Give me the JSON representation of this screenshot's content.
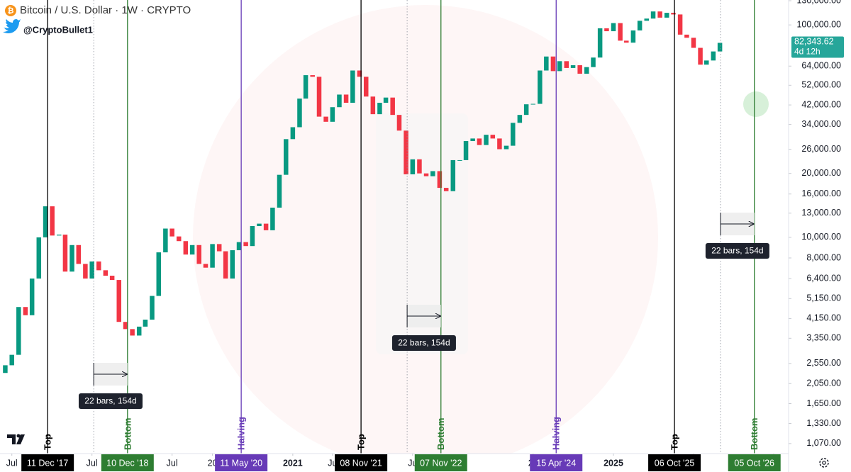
{
  "chart_data": {
    "type": "candlestick",
    "title": "Bitcoin / U.S. Dollar · 1W · CRYPTO",
    "author": "@CryptoBullet1",
    "log_scale": true,
    "grid": false,
    "up_color": "#089981",
    "down_color": "#f23645",
    "x": [
      "2017-05",
      "2017-06",
      "2017-07",
      "2017-08",
      "2017-09",
      "2017-10",
      "2017-11",
      "2017-12",
      "2018-01",
      "2018-02",
      "2018-03",
      "2018-04",
      "2018-05",
      "2018-06",
      "2018-07",
      "2018-08",
      "2018-09",
      "2018-10",
      "2018-11",
      "2018-12",
      "2019-01",
      "2019-02",
      "2019-03",
      "2019-04",
      "2019-05",
      "2019-06",
      "2019-07",
      "2019-08",
      "2019-09",
      "2019-10",
      "2019-11",
      "2019-12",
      "2020-01",
      "2020-02",
      "2020-03",
      "2020-04",
      "2020-05",
      "2020-06",
      "2020-07",
      "2020-08",
      "2020-09",
      "2020-10",
      "2020-11",
      "2020-12",
      "2021-01",
      "2021-02",
      "2021-03",
      "2021-04",
      "2021-05",
      "2021-06",
      "2021-07",
      "2021-08",
      "2021-09",
      "2021-10",
      "2021-11",
      "2021-12",
      "2022-01",
      "2022-02",
      "2022-03",
      "2022-04",
      "2022-05",
      "2022-06",
      "2022-07",
      "2022-08",
      "2022-09",
      "2022-10",
      "2022-11",
      "2022-12",
      "2023-01",
      "2023-02",
      "2023-03",
      "2023-04",
      "2023-05",
      "2023-06",
      "2023-07",
      "2023-08",
      "2023-09",
      "2023-10",
      "2023-11",
      "2023-12",
      "2024-01",
      "2024-02",
      "2024-03",
      "2024-04",
      "2024-05",
      "2024-06",
      "2024-07",
      "2024-08",
      "2024-09",
      "2024-10",
      "2024-11",
      "2024-12",
      "2025-01",
      "2025-02",
      "2025-03",
      "2025-04",
      "2025-05",
      "2025-06",
      "2025-07",
      "2025-08",
      "2025-09",
      "2025-10",
      "2025-11",
      "2025-12",
      "2026-01",
      "2026-02",
      "2026-03",
      "2026-04",
      "2026-05"
    ],
    "values": [
      2300,
      2500,
      2800,
      4700,
      4300,
      6400,
      10000,
      14000,
      10200,
      10300,
      6900,
      9200,
      7500,
      6400,
      7700,
      7000,
      6600,
      6300,
      4000,
      3700,
      3450,
      3800,
      4100,
      5300,
      8500,
      11000,
      10100,
      9600,
      8300,
      9200,
      7500,
      7200,
      9300,
      8600,
      6400,
      8700,
      9500,
      9100,
      11300,
      11600,
      10800,
      13800,
      19700,
      29000,
      33000,
      45000,
      58000,
      57000,
      37000,
      35000,
      41000,
      47000,
      43000,
      61000,
      57000,
      46000,
      38000,
      43000,
      45500,
      37700,
      31800,
      19800,
      23300,
      20000,
      19400,
      20500,
      17100,
      16500,
      23100,
      23100,
      28400,
      29200,
      27200,
      30400,
      29200,
      26000,
      27000,
      34600,
      37700,
      42300,
      42500,
      61000,
      71000,
      60600,
      67500,
      62700,
      64600,
      58900,
      63300,
      70200,
      96400,
      93400,
      102000,
      84300,
      82500,
      94200,
      104600,
      107100,
      115700,
      108200,
      114000,
      112000,
      90000,
      87000,
      78000,
      65000,
      68000,
      75000,
      82343.62
    ],
    "xlim": [
      "2017-05-08",
      "2027-03-10"
    ],
    "xticks": [
      {
        "value": "2017-07",
        "label": "Jul"
      },
      {
        "value": "2018-07",
        "label": "Jul"
      },
      {
        "value": "2019-07",
        "label": "Jul"
      },
      {
        "value": "2020-01",
        "label": "20"
      },
      {
        "value": "2021-01",
        "label": "2021"
      },
      {
        "value": "2021-07",
        "label": "Ju"
      },
      {
        "value": "2022-07",
        "label": "Ju"
      },
      {
        "value": "2024-01",
        "label": "20"
      },
      {
        "value": "2025-01",
        "label": "2025"
      },
      {
        "value": "2026-01",
        "label": "6"
      },
      {
        "value": "2027-01",
        "label": "7"
      }
    ],
    "ylim": [
      960,
      131000
    ],
    "yticks": [
      {
        "value": 130000,
        "label": "130,000.00"
      },
      {
        "value": 100000,
        "label": "100,000.00"
      },
      {
        "value": 64000,
        "label": "64,000.00"
      },
      {
        "value": 52000,
        "label": "52,000.00"
      },
      {
        "value": 42000,
        "label": "42,000.00"
      },
      {
        "value": 34000,
        "label": "34,000.00"
      },
      {
        "value": 26000,
        "label": "26,000.00"
      },
      {
        "value": 20000,
        "label": "20,000.00"
      },
      {
        "value": 16000,
        "label": "16,000.00"
      },
      {
        "value": 13000,
        "label": "13,000.00"
      },
      {
        "value": 10000,
        "label": "10,000.00"
      },
      {
        "value": 8000,
        "label": "8,000.00"
      },
      {
        "value": 6400,
        "label": "6,400.00"
      },
      {
        "value": 5150,
        "label": "5,150.00"
      },
      {
        "value": 4150,
        "label": "4,150.00"
      },
      {
        "value": 3350,
        "label": "3,350.00"
      },
      {
        "value": 2550,
        "label": "2,550.00"
      },
      {
        "value": 2050,
        "label": "2,050.00"
      },
      {
        "value": 1650,
        "label": "1,650.00"
      },
      {
        "value": 1330,
        "label": "1,330.00"
      },
      {
        "value": 1070,
        "label": "1,070.00"
      }
    ],
    "last_price": {
      "value": 82343.62,
      "label": "82,343.62"
    },
    "countdown": "4d 12h",
    "events": [
      {
        "label": "Top",
        "date": "11 Dec '17",
        "color": "#000000"
      },
      {
        "label": "Bottom",
        "date": "10 Dec '18",
        "color": "#2e7d32"
      },
      {
        "label": "Halving",
        "date": "11 May '20",
        "color": "#673ab7"
      },
      {
        "label": "Top",
        "date": "08 Nov '21",
        "color": "#000000"
      },
      {
        "label": "Bottom",
        "date": "07 Nov '22",
        "color": "#2e7d32"
      },
      {
        "label": "Halving",
        "date": "15 Apr '24",
        "color": "#673ab7"
      },
      {
        "label": "Top",
        "date": "06 Oct '25",
        "color": "#000000"
      },
      {
        "label": "Bottom",
        "date": "05 Oct '26",
        "color": "#2e7d32"
      }
    ],
    "measures": [
      {
        "label": "22 bars, 154d"
      },
      {
        "label": "22 bars, 154d"
      },
      {
        "label": "22 bars, 154d"
      }
    ]
  }
}
